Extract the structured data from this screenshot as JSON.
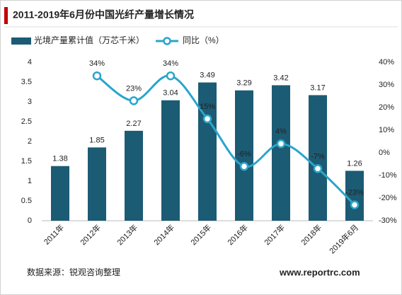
{
  "chart_data": {
    "type": "bar_line",
    "title": "2011-2019年6月份中国光纤产量增长情况",
    "categories": [
      "2011年",
      "2012年",
      "2013年",
      "2014年",
      "2015年",
      "2016年",
      "2017年",
      "2018年",
      "2019年6月"
    ],
    "series": [
      {
        "name": "光境产量累计值（万芯千米）",
        "color": "#1c5b74",
        "type": "bar",
        "values": [
          1.38,
          1.85,
          2.27,
          3.04,
          3.49,
          3.29,
          3.42,
          3.17,
          1.26
        ]
      },
      {
        "name": "同比（%）",
        "color": "#2aa5cc",
        "type": "line",
        "axis": "y2",
        "values": [
          null,
          34,
          23,
          34,
          15,
          -6,
          4,
          -7,
          -23
        ],
        "value_labels": [
          null,
          "34%",
          "23%",
          "34%",
          "15%",
          "-6%",
          "4%",
          "-7%",
          "-23%"
        ]
      }
    ],
    "ylim": [
      0,
      4
    ],
    "yticks": [
      0,
      0.5,
      1,
      1.5,
      2,
      2.5,
      3,
      3.5,
      4
    ],
    "y2lim": [
      -30,
      40
    ],
    "y2ticks": [
      {
        "value": -30,
        "label": "-30%"
      },
      {
        "value": -20,
        "label": "-20%"
      },
      {
        "value": -10,
        "label": "-10%"
      },
      {
        "value": 0,
        "label": "0%"
      },
      {
        "value": 10,
        "label": "10%"
      },
      {
        "value": 20,
        "label": "20%"
      },
      {
        "value": 30,
        "label": "30%"
      },
      {
        "value": 40,
        "label": "40%"
      }
    ],
    "source": "数据来源：锐观咨询整理",
    "watermark": "www.reportrc.com"
  }
}
